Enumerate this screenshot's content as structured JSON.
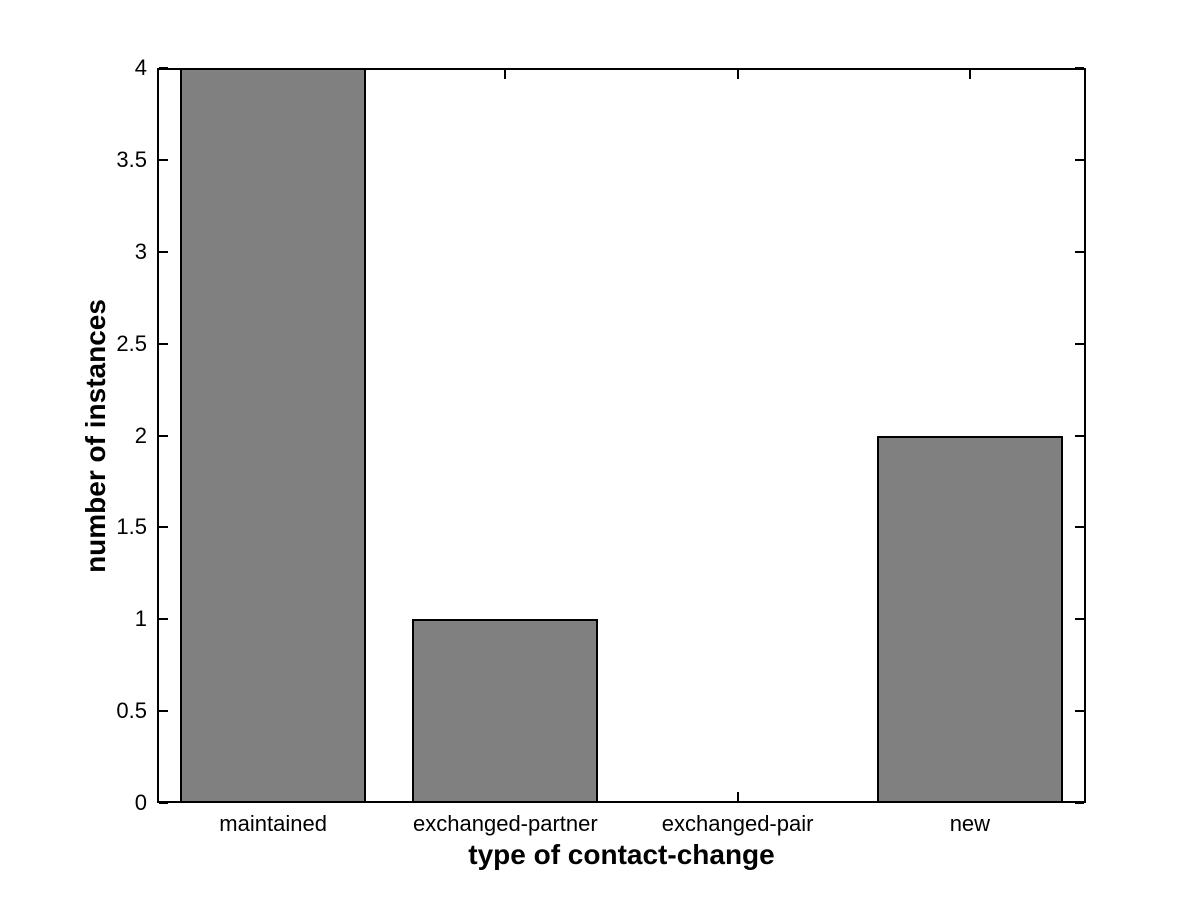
{
  "chart_data": {
    "type": "bar",
    "title": "",
    "categories": [
      "maintained",
      "exchanged-partner",
      "exchanged-pair",
      "new"
    ],
    "values": [
      4,
      1,
      0,
      2
    ],
    "xlabel": "type of contact-change",
    "ylabel": "number of instances",
    "xlim": [
      0.5,
      4.5
    ],
    "ylim": [
      0,
      4
    ],
    "yticks": [
      0,
      0.5,
      1,
      1.5,
      2,
      2.5,
      3,
      3.5,
      4
    ],
    "ytick_labels": [
      "0",
      "0.5",
      "1",
      "1.5",
      "2",
      "2.5",
      "3",
      "3.5",
      "4"
    ],
    "bar_width_fraction": 0.8,
    "bar_color": "#808080",
    "bar_edge_color": "#000000",
    "axis_color": "#000000",
    "background_color": "#ffffff",
    "tick_direction": "in",
    "box": true,
    "grid": false,
    "legend": null
  }
}
